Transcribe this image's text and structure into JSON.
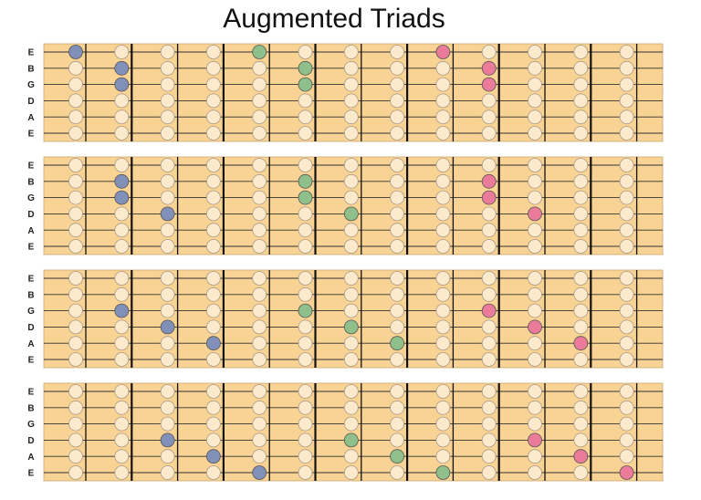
{
  "title": "Augmented Triads",
  "fretboards": [
    {
      "strings": [
        "E",
        "B",
        "G",
        "D",
        "A",
        "E"
      ],
      "highlights": [
        {
          "string": 0,
          "fret": 0,
          "color": "#8090b8"
        },
        {
          "string": 0,
          "fret": 4,
          "color": "#8fc08c"
        },
        {
          "string": 0,
          "fret": 8,
          "color": "#ea7b9b"
        },
        {
          "string": 1,
          "fret": 1,
          "color": "#8090b8"
        },
        {
          "string": 1,
          "fret": 5,
          "color": "#8fc08c"
        },
        {
          "string": 1,
          "fret": 9,
          "color": "#ea7b9b"
        },
        {
          "string": 2,
          "fret": 1,
          "color": "#8090b8"
        },
        {
          "string": 2,
          "fret": 5,
          "color": "#8fc08c"
        },
        {
          "string": 2,
          "fret": 9,
          "color": "#ea7b9b"
        }
      ]
    },
    {
      "strings": [
        "E",
        "B",
        "G",
        "D",
        "A",
        "E"
      ],
      "highlights": [
        {
          "string": 1,
          "fret": 1,
          "color": "#8090b8"
        },
        {
          "string": 1,
          "fret": 5,
          "color": "#8fc08c"
        },
        {
          "string": 1,
          "fret": 9,
          "color": "#ea7b9b"
        },
        {
          "string": 2,
          "fret": 1,
          "color": "#8090b8"
        },
        {
          "string": 2,
          "fret": 5,
          "color": "#8fc08c"
        },
        {
          "string": 2,
          "fret": 9,
          "color": "#ea7b9b"
        },
        {
          "string": 3,
          "fret": 2,
          "color": "#8090b8"
        },
        {
          "string": 3,
          "fret": 6,
          "color": "#8fc08c"
        },
        {
          "string": 3,
          "fret": 10,
          "color": "#ea7b9b"
        }
      ]
    },
    {
      "strings": [
        "E",
        "B",
        "G",
        "D",
        "A",
        "E"
      ],
      "highlights": [
        {
          "string": 2,
          "fret": 1,
          "color": "#8090b8"
        },
        {
          "string": 2,
          "fret": 5,
          "color": "#8fc08c"
        },
        {
          "string": 2,
          "fret": 9,
          "color": "#ea7b9b"
        },
        {
          "string": 3,
          "fret": 2,
          "color": "#8090b8"
        },
        {
          "string": 3,
          "fret": 6,
          "color": "#8fc08c"
        },
        {
          "string": 3,
          "fret": 10,
          "color": "#ea7b9b"
        },
        {
          "string": 4,
          "fret": 3,
          "color": "#8090b8"
        },
        {
          "string": 4,
          "fret": 7,
          "color": "#8fc08c"
        },
        {
          "string": 4,
          "fret": 11,
          "color": "#ea7b9b"
        }
      ]
    },
    {
      "strings": [
        "E",
        "B",
        "G",
        "D",
        "A",
        "E"
      ],
      "highlights": [
        {
          "string": 3,
          "fret": 2,
          "color": "#8090b8"
        },
        {
          "string": 3,
          "fret": 6,
          "color": "#8fc08c"
        },
        {
          "string": 3,
          "fret": 10,
          "color": "#ea7b9b"
        },
        {
          "string": 4,
          "fret": 3,
          "color": "#8090b8"
        },
        {
          "string": 4,
          "fret": 7,
          "color": "#8fc08c"
        },
        {
          "string": 4,
          "fret": 11,
          "color": "#ea7b9b"
        },
        {
          "string": 5,
          "fret": 4,
          "color": "#8090b8"
        },
        {
          "string": 5,
          "fret": 8,
          "color": "#8fc08c"
        },
        {
          "string": 5,
          "fret": 12,
          "color": "#ea7b9b"
        }
      ]
    }
  ]
}
